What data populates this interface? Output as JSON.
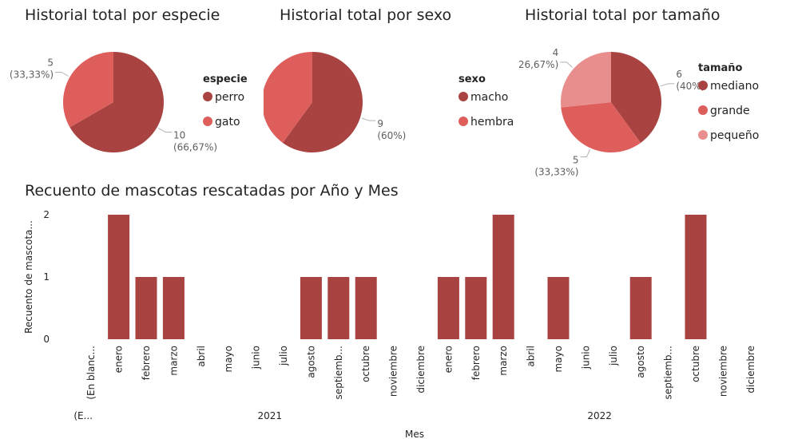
{
  "pies": [
    {
      "title": "Historial total por especie",
      "legend_title": "especie",
      "slices": [
        {
          "label": "perro",
          "value": 10,
          "pct": "(66,67%)",
          "color": "#a84341"
        },
        {
          "label": "gato",
          "value": 5,
          "pct": "(33,33%)",
          "color": "#de5e5c"
        }
      ]
    },
    {
      "title": "Historial total por sexo",
      "legend_title": "sexo",
      "slices": [
        {
          "label": "macho",
          "value": 9,
          "pct": "(60%)",
          "color": "#a84341"
        },
        {
          "label": "hembra",
          "value": 6,
          "pct": "(40%)",
          "color": "#de5e5c"
        }
      ]
    },
    {
      "title": "Historial total por tamaño",
      "legend_title": "tamaño",
      "slices": [
        {
          "label": "mediano",
          "value": 6,
          "pct": "(40%)",
          "color": "#a84341"
        },
        {
          "label": "grande",
          "value": 5,
          "pct": "(33,33%)",
          "color": "#de5e5c"
        },
        {
          "label": "pequeño",
          "value": 4,
          "pct": "(26,67%)",
          "color": "#e88e8d"
        }
      ]
    }
  ],
  "chart_data": {
    "type": "bar",
    "title": "Recuento de mascotas rescatadas por Año y Mes",
    "xlabel": "Mes",
    "ylabel": "Recuento de mascota...",
    "ylim": [
      0,
      2
    ],
    "yticks": [
      "0",
      "1",
      "2"
    ],
    "bar_color": "#a84341",
    "categories": [
      {
        "month": "(En blanc...",
        "year": "(E...",
        "value": 0
      },
      {
        "month": "enero",
        "year": "2021",
        "value": 2
      },
      {
        "month": "febrero",
        "year": "2021",
        "value": 1
      },
      {
        "month": "marzo",
        "year": "2021",
        "value": 1
      },
      {
        "month": "abril",
        "year": "2021",
        "value": 0
      },
      {
        "month": "mayo",
        "year": "2021",
        "value": 0
      },
      {
        "month": "junio",
        "year": "2021",
        "value": 0
      },
      {
        "month": "julio",
        "year": "2021",
        "value": 0
      },
      {
        "month": "agosto",
        "year": "2021",
        "value": 1
      },
      {
        "month": "septiemb...",
        "year": "2021",
        "value": 1
      },
      {
        "month": "octubre",
        "year": "2021",
        "value": 1
      },
      {
        "month": "noviembre",
        "year": "2021",
        "value": 0
      },
      {
        "month": "diciembre",
        "year": "2021",
        "value": 0
      },
      {
        "month": "enero",
        "year": "2022",
        "value": 1
      },
      {
        "month": "febrero",
        "year": "2022",
        "value": 1
      },
      {
        "month": "marzo",
        "year": "2022",
        "value": 2
      },
      {
        "month": "abril",
        "year": "2022",
        "value": 0
      },
      {
        "month": "mayo",
        "year": "2022",
        "value": 1
      },
      {
        "month": "junio",
        "year": "2022",
        "value": 0
      },
      {
        "month": "julio",
        "year": "2022",
        "value": 0
      },
      {
        "month": "agosto",
        "year": "2022",
        "value": 1
      },
      {
        "month": "septiemb...",
        "year": "2022",
        "value": 0
      },
      {
        "month": "octubre",
        "year": "2022",
        "value": 2
      },
      {
        "month": "noviembre",
        "year": "2022",
        "value": 0
      },
      {
        "month": "diciembre",
        "year": "2022",
        "value": 0
      }
    ],
    "years": [
      "(E...",
      "2021",
      "2022"
    ]
  }
}
